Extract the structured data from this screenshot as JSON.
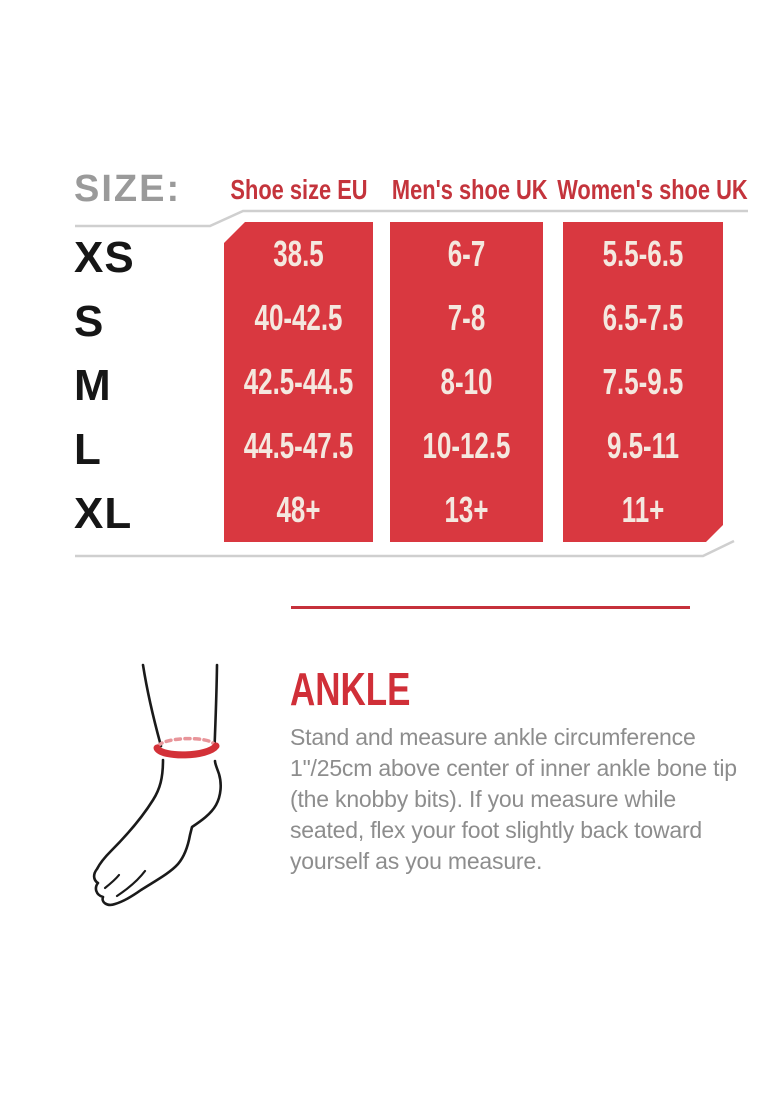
{
  "size_chart": {
    "title": "SIZE:",
    "column_headers": [
      "Shoe size EU",
      "Men's shoe UK",
      "Women's shoe UK"
    ],
    "rows": [
      {
        "size": "XS",
        "shoe_size_eu": "38.5",
        "mens_shoe_uk": "6-7",
        "womens_shoe_uk": "5.5-6.5"
      },
      {
        "size": "S",
        "shoe_size_eu": "40-42.5",
        "mens_shoe_uk": "7-8",
        "womens_shoe_uk": "6.5-7.5"
      },
      {
        "size": "M",
        "shoe_size_eu": "42.5-44.5",
        "mens_shoe_uk": "8-10",
        "womens_shoe_uk": "7.5-9.5"
      },
      {
        "size": "L",
        "shoe_size_eu": "44.5-47.5",
        "mens_shoe_uk": "10-12.5",
        "womens_shoe_uk": "9.5-11"
      },
      {
        "size": "XL",
        "shoe_size_eu": "48+",
        "mens_shoe_uk": "13+",
        "womens_shoe_uk": "11+"
      }
    ]
  },
  "chart_data": {
    "type": "table",
    "title": "SIZE:",
    "columns": [
      "Size",
      "Shoe size EU",
      "Men's shoe UK",
      "Women's shoe UK"
    ],
    "rows": [
      [
        "XS",
        "38.5",
        "6-7",
        "5.5-6.5"
      ],
      [
        "S",
        "40-42.5",
        "7-8",
        "6.5-7.5"
      ],
      [
        "M",
        "42.5-44.5",
        "8-10",
        "7.5-9.5"
      ],
      [
        "L",
        "44.5-47.5",
        "10-12.5",
        "9.5-11"
      ],
      [
        "XL",
        "48+",
        "13+",
        "11+"
      ]
    ]
  },
  "measurement_guide": {
    "heading": "ANKLE",
    "body": "Stand and measure ankle circumference 1\"/25cm above center of inner ankle bone tip (the knobby bits). If you measure while seated, flex your foot slightly back toward yourself as you measure.",
    "illustration": "foot-with-red-measuring-band-at-ankle"
  },
  "colors": {
    "table_red": "#d93840",
    "header_red": "#c4343c",
    "divider_red": "#c6313b",
    "heading_red": "#d02f38",
    "cell_text": "#f4e8df",
    "size_title_gray": "#9a9a9a",
    "body_text_gray": "#8d8d8d",
    "rule_gray": "#cfcfcf",
    "row_label_black": "#161616"
  }
}
